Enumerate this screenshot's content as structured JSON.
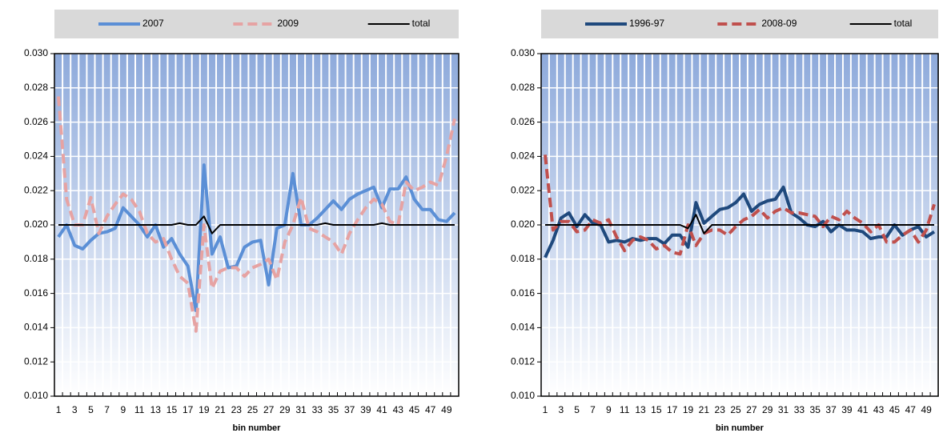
{
  "chart_data": [
    {
      "type": "line",
      "x_label": "bin number",
      "categories": [
        1,
        null,
        3,
        null,
        5,
        null,
        7,
        null,
        9,
        null,
        11,
        null,
        13,
        null,
        15,
        null,
        17,
        null,
        19,
        null,
        21,
        null,
        23,
        null,
        25,
        null,
        27,
        null,
        29,
        null,
        31,
        null,
        33,
        null,
        35,
        null,
        37,
        null,
        39,
        null,
        41,
        null,
        43,
        null,
        45,
        null,
        47,
        null,
        49,
        null
      ],
      "series": [
        {
          "name": "2007",
          "color": "#5b8fd6",
          "dashed": false,
          "values": [
            0.0193,
            0.02,
            0.0188,
            0.0186,
            0.0191,
            0.0195,
            0.0196,
            0.0198,
            0.021,
            0.0205,
            0.02,
            0.0193,
            0.02,
            0.0187,
            0.0192,
            0.0183,
            0.0176,
            0.015,
            0.0235,
            0.0183,
            0.0193,
            0.0175,
            0.0176,
            0.0187,
            0.019,
            0.0191,
            0.0165,
            0.0198,
            0.02,
            0.023,
            0.02,
            0.02,
            0.0204,
            0.0209,
            0.0214,
            0.0209,
            0.0215,
            0.0218,
            0.022,
            0.0222,
            0.021,
            0.0221,
            0.0221,
            0.0228,
            0.0215,
            0.0209,
            0.0209,
            0.0203,
            0.0202,
            0.0207
          ]
        },
        {
          "name": "2009",
          "color": "#e6a3a3",
          "dashed": true,
          "values": [
            0.0275,
            0.0215,
            0.02,
            0.02,
            0.0216,
            0.0195,
            0.0205,
            0.0212,
            0.0218,
            0.0215,
            0.0208,
            0.0195,
            0.019,
            0.0192,
            0.018,
            0.017,
            0.0166,
            0.0138,
            0.02,
            0.0163,
            0.0173,
            0.0175,
            0.0175,
            0.017,
            0.0175,
            0.0177,
            0.018,
            0.0168,
            0.019,
            0.02,
            0.0216,
            0.0198,
            0.0196,
            0.0193,
            0.019,
            0.0183,
            0.0195,
            0.0203,
            0.021,
            0.0215,
            0.0212,
            0.0202,
            0.02,
            0.0225,
            0.022,
            0.0222,
            0.0225,
            0.0223,
            0.024,
            0.0262
          ]
        },
        {
          "name": "total",
          "color": "#000000",
          "dashed": false,
          "values": [
            0.02,
            0.02,
            0.02,
            0.02,
            0.02,
            0.02,
            0.02,
            0.02,
            0.02,
            0.02,
            0.02,
            0.02,
            0.02,
            0.02,
            0.02,
            0.0201,
            0.02,
            0.02,
            0.0205,
            0.0195,
            0.02,
            0.02,
            0.02,
            0.02,
            0.02,
            0.02,
            0.02,
            0.02,
            0.02,
            0.02,
            0.02,
            0.02,
            0.02,
            0.0201,
            0.02,
            0.02,
            0.02,
            0.02,
            0.02,
            0.02,
            0.0201,
            0.02,
            0.02,
            0.02,
            0.02,
            0.02,
            0.02,
            0.02,
            0.02,
            0.02
          ]
        }
      ],
      "ylim": [
        0.01,
        0.03
      ],
      "yticks": [
        {
          "value": 0.01,
          "label": "0.010"
        },
        {
          "value": 0.012,
          "label": "0.012"
        },
        {
          "value": 0.014,
          "label": "0.014"
        },
        {
          "value": 0.016,
          "label": "0.016"
        },
        {
          "value": 0.018,
          "label": "0.018"
        },
        {
          "value": 0.02,
          "label": "0.020"
        },
        {
          "value": 0.022,
          "label": "0.022"
        },
        {
          "value": 0.024,
          "label": "0.024"
        },
        {
          "value": 0.026,
          "label": "0.026"
        },
        {
          "value": 0.028,
          "label": "0.028"
        },
        {
          "value": 0.03,
          "label": "0.030"
        }
      ],
      "grid": true,
      "legend": "top"
    },
    {
      "type": "line",
      "x_label": "bin number",
      "categories": [
        1,
        null,
        3,
        null,
        5,
        null,
        7,
        null,
        9,
        null,
        11,
        null,
        13,
        null,
        15,
        null,
        17,
        null,
        19,
        null,
        21,
        null,
        23,
        null,
        25,
        null,
        27,
        null,
        29,
        null,
        31,
        null,
        33,
        null,
        35,
        null,
        37,
        null,
        39,
        null,
        41,
        null,
        43,
        null,
        45,
        null,
        47,
        null,
        49,
        null
      ],
      "series": [
        {
          "name": "1996-97",
          "color": "#1f497d",
          "dashed": false,
          "values": [
            0.0181,
            0.0191,
            0.0204,
            0.0207,
            0.0199,
            0.0206,
            0.0201,
            0.02,
            0.019,
            0.0191,
            0.019,
            0.0192,
            0.0191,
            0.0192,
            0.0192,
            0.0189,
            0.0194,
            0.0194,
            0.0187,
            0.0213,
            0.0201,
            0.0205,
            0.0209,
            0.021,
            0.0213,
            0.0218,
            0.0208,
            0.0212,
            0.0214,
            0.0215,
            0.0222,
            0.0207,
            0.0204,
            0.02,
            0.0199,
            0.0202,
            0.0196,
            0.02,
            0.0197,
            0.0197,
            0.0196,
            0.0192,
            0.0193,
            0.0193,
            0.02,
            0.0194,
            0.0197,
            0.0199,
            0.0193,
            0.0196
          ]
        },
        {
          "name": "2008-09",
          "color": "#c0504d",
          "dashed": true,
          "values": [
            0.0241,
            0.0197,
            0.0202,
            0.0202,
            0.0196,
            0.0197,
            0.0203,
            0.0201,
            0.0203,
            0.0193,
            0.0185,
            0.0191,
            0.0193,
            0.0191,
            0.0186,
            0.0188,
            0.0184,
            0.0183,
            0.02,
            0.0188,
            0.0195,
            0.0197,
            0.0197,
            0.0194,
            0.0199,
            0.0203,
            0.0205,
            0.0209,
            0.0204,
            0.0208,
            0.021,
            0.0207,
            0.0207,
            0.0206,
            0.0205,
            0.0199,
            0.0205,
            0.0203,
            0.0208,
            0.0204,
            0.0201,
            0.0196,
            0.02,
            0.019,
            0.019,
            0.0194,
            0.0197,
            0.019,
            0.0197,
            0.0212
          ]
        },
        {
          "name": "total",
          "color": "#000000",
          "dashed": false,
          "values": [
            0.02,
            0.02,
            0.02,
            0.02,
            0.02,
            0.02,
            0.02,
            0.02,
            0.02,
            0.02,
            0.02,
            0.02,
            0.02,
            0.02,
            0.02,
            0.02,
            0.02,
            0.02,
            0.0198,
            0.0206,
            0.0195,
            0.02,
            0.02,
            0.02,
            0.02,
            0.02,
            0.02,
            0.02,
            0.02,
            0.02,
            0.02,
            0.02,
            0.02,
            0.02,
            0.02,
            0.02,
            0.02,
            0.02,
            0.02,
            0.02,
            0.02,
            0.02,
            0.02,
            0.02,
            0.02,
            0.02,
            0.02,
            0.02,
            0.02,
            0.02
          ]
        }
      ],
      "ylim": [
        0.01,
        0.03
      ],
      "yticks": [
        {
          "value": 0.01,
          "label": "0.010"
        },
        {
          "value": 0.012,
          "label": "0.012"
        },
        {
          "value": 0.014,
          "label": "0.014"
        },
        {
          "value": 0.016,
          "label": "0.016"
        },
        {
          "value": 0.018,
          "label": "0.018"
        },
        {
          "value": 0.02,
          "label": "0.020"
        },
        {
          "value": 0.022,
          "label": "0.022"
        },
        {
          "value": 0.024,
          "label": "0.024"
        },
        {
          "value": 0.026,
          "label": "0.026"
        },
        {
          "value": 0.028,
          "label": "0.028"
        },
        {
          "value": 0.03,
          "label": "0.030"
        }
      ],
      "grid": true,
      "legend": "top"
    }
  ]
}
